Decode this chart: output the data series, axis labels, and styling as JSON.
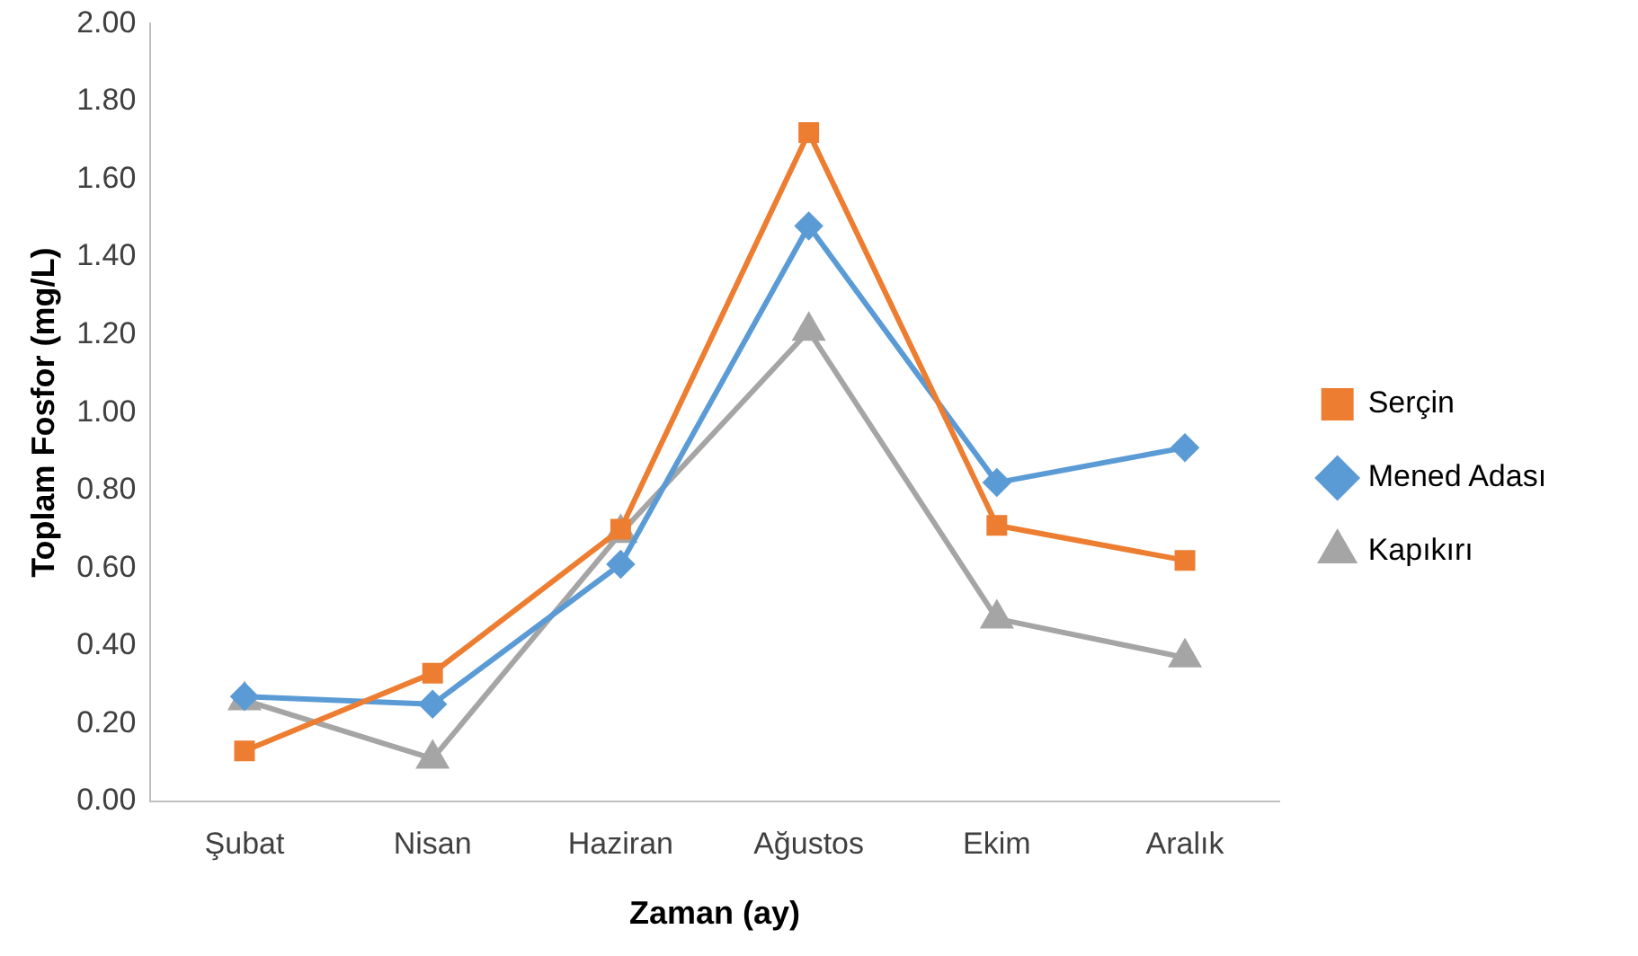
{
  "chart_data": {
    "type": "line",
    "xlabel": "Zaman (ay)",
    "ylabel": "Toplam Fosfor (mg/L)",
    "categories": [
      "Şubat",
      "Nisan",
      "Haziran",
      "Ağustos",
      "Ekim",
      "Aralık"
    ],
    "series": [
      {
        "name": "Serçin",
        "color": "#ed7d31",
        "marker": "square",
        "values": [
          0.13,
          0.33,
          0.7,
          1.72,
          0.71,
          0.62
        ]
      },
      {
        "name": "Mened Adası",
        "color": "#5b9bd5",
        "marker": "diamond",
        "values": [
          0.27,
          0.25,
          0.61,
          1.48,
          0.82,
          0.91
        ]
      },
      {
        "name": "Kapıkırı",
        "color": "#a5a5a5",
        "marker": "triangle",
        "values": [
          0.26,
          0.11,
          0.69,
          1.21,
          0.47,
          0.37
        ]
      }
    ],
    "ylim": [
      0,
      2
    ],
    "yticks": [
      {
        "value": 0,
        "label": "0.00"
      },
      {
        "value": 0.2,
        "label": "0.20"
      },
      {
        "value": 0.4,
        "label": "0.40"
      },
      {
        "value": 0.6,
        "label": "0.60"
      },
      {
        "value": 0.8,
        "label": "0.80"
      },
      {
        "value": 1,
        "label": "1.00"
      },
      {
        "value": 1.2,
        "label": "1.20"
      },
      {
        "value": 1.4,
        "label": "1.40"
      },
      {
        "value": 1.6,
        "label": "1.60"
      },
      {
        "value": 1.8,
        "label": "1.80"
      },
      {
        "value": 2,
        "label": "2.00"
      }
    ],
    "grid": false,
    "legend": "right",
    "line_style": "solid"
  }
}
